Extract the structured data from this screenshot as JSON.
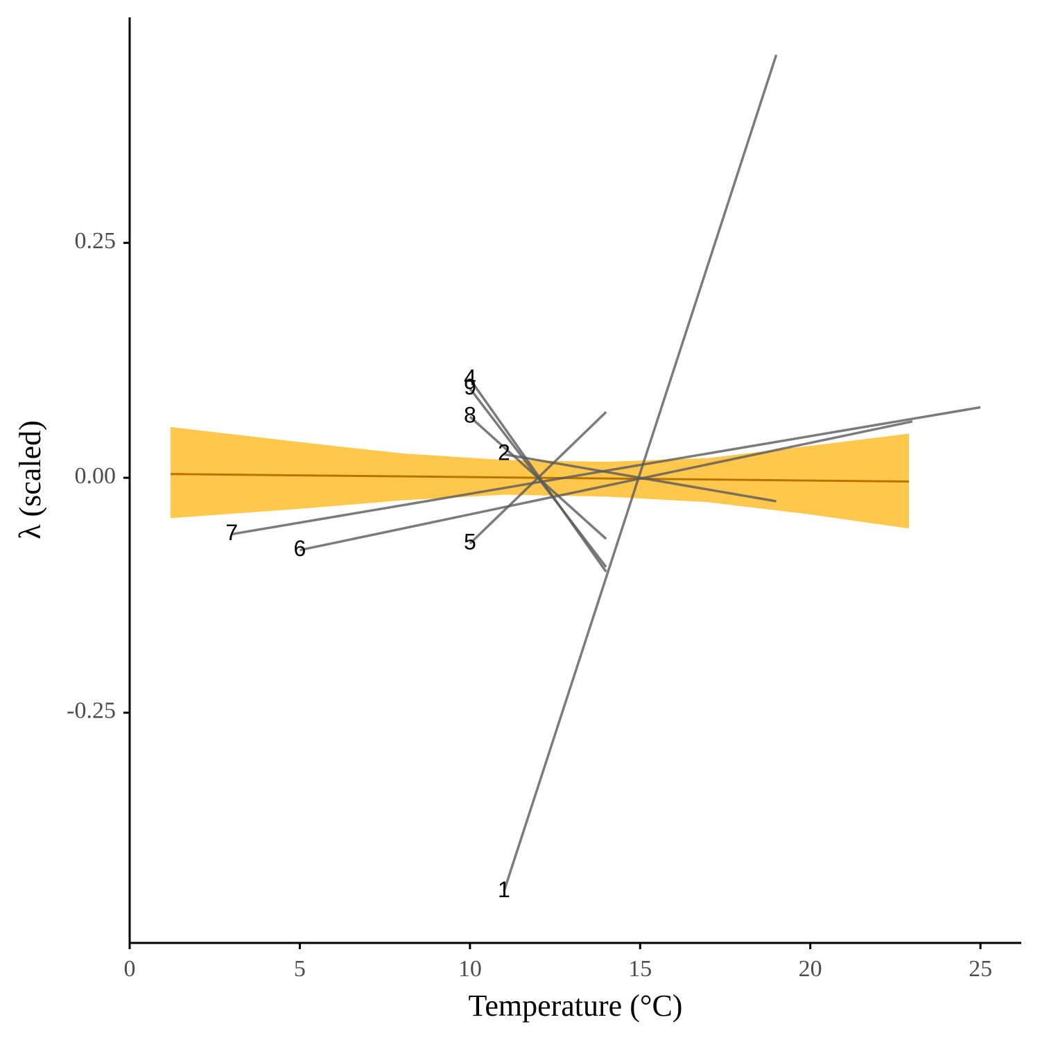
{
  "chart_data": {
    "type": "line",
    "xlabel": "Temperature (°C)",
    "ylabel": "λ (scaled)",
    "xlim": [
      0,
      26.2
    ],
    "ylim": [
      -0.495,
      0.49
    ],
    "x_ticks": [
      0,
      5,
      10,
      15,
      20,
      25
    ],
    "x_tick_labels": [
      "0",
      "5",
      "10",
      "15",
      "20",
      "25"
    ],
    "y_ticks": [
      0.25,
      0.0,
      -0.25
    ],
    "y_tick_labels": [
      "0.25",
      "0.00",
      "-0.25"
    ],
    "grid": false,
    "legend": "none",
    "series": [
      {
        "label": "1",
        "x": [
          11,
          19
        ],
        "y": [
          -0.44,
          0.45
        ]
      },
      {
        "label": "2",
        "x": [
          11,
          19
        ],
        "y": [
          0.025,
          -0.025
        ]
      },
      {
        "label": "4",
        "x": [
          10,
          14
        ],
        "y": [
          0.105,
          -0.1
        ]
      },
      {
        "label": "5",
        "x": [
          10,
          14
        ],
        "y": [
          -0.07,
          0.07
        ]
      },
      {
        "label": "6",
        "x": [
          5,
          23
        ],
        "y": [
          -0.077,
          0.06
        ]
      },
      {
        "label": "7",
        "x": [
          3,
          25
        ],
        "y": [
          -0.06,
          0.075
        ]
      },
      {
        "label": "8",
        "x": [
          10,
          14
        ],
        "y": [
          0.065,
          -0.065
        ]
      },
      {
        "label": "9",
        "x": [
          10,
          14
        ],
        "y": [
          0.095,
          -0.095
        ]
      }
    ],
    "overall_fit": {
      "x": [
        1.2,
        22.9
      ],
      "y": [
        0.004,
        -0.004
      ],
      "ribbon_x": [
        1.2,
        5,
        8,
        11,
        14,
        17,
        20,
        22.9
      ],
      "ribbon_upper": [
        0.054,
        0.038,
        0.026,
        0.019,
        0.017,
        0.021,
        0.034,
        0.047
      ],
      "ribbon_lower": [
        -0.043,
        -0.033,
        -0.024,
        -0.018,
        -0.02,
        -0.026,
        -0.039,
        -0.054
      ]
    },
    "colors": {
      "ribbon": "#FFB000",
      "fit_line": "#B87300",
      "series_line": "#5a5a5a",
      "axis": "#000000"
    }
  }
}
